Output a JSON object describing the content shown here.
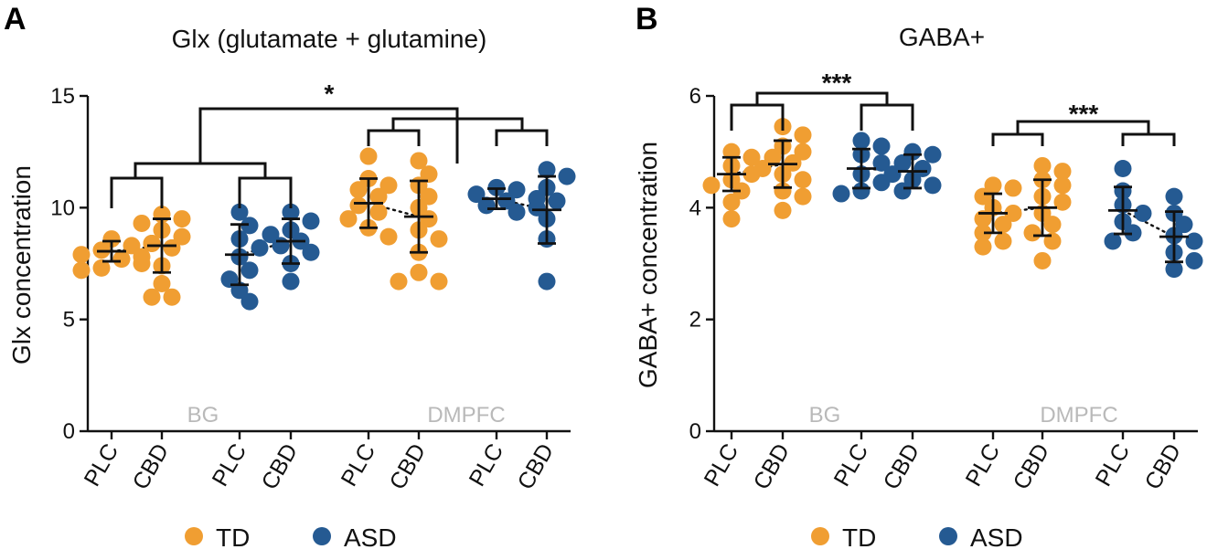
{
  "colors": {
    "TD": "#F09E32",
    "ASD": "#255A92"
  },
  "legend": {
    "items": [
      {
        "label": "TD",
        "group": "TD"
      },
      {
        "label": "ASD",
        "group": "ASD"
      }
    ]
  },
  "chart_data": [
    {
      "type": "scatter",
      "letter": "A",
      "title": "Glx (glutamate + glutamine)",
      "ylabel": "Glx concentration",
      "ylim": [
        0,
        15
      ],
      "yticks": [
        "0",
        "5",
        "10",
        "15"
      ],
      "regions": [
        "BG",
        "DMPFC"
      ],
      "significance": "*",
      "sig_brackets": [],
      "groups": [
        {
          "label": "PLC",
          "group": "TD",
          "region": "BG",
          "mean": 8.05,
          "sd": 0.45,
          "points": [
            8.6,
            8.3,
            8.1,
            7.9,
            7.7,
            7.5,
            7.3,
            7.2,
            8.4
          ]
        },
        {
          "label": "CBD",
          "group": "TD",
          "region": "BG",
          "mean": 8.3,
          "sd": 1.2,
          "points": [
            9.7,
            9.5,
            9.3,
            9.0,
            8.7,
            8.4,
            8.2,
            7.8,
            7.4,
            6.6,
            6.0,
            6.0
          ]
        },
        {
          "label": "PLC",
          "group": "ASD",
          "region": "BG",
          "mean": 7.9,
          "sd": 1.35,
          "points": [
            9.8,
            9.2,
            8.6,
            8.2,
            7.8,
            7.2,
            6.8,
            6.3,
            5.8
          ]
        },
        {
          "label": "CBD",
          "group": "ASD",
          "region": "BG",
          "mean": 8.5,
          "sd": 1.0,
          "points": [
            9.8,
            9.4,
            9.0,
            8.8,
            8.5,
            8.3,
            8.0,
            7.5,
            6.7
          ]
        },
        {
          "label": "PLC",
          "group": "TD",
          "region": "DMPFC",
          "mean": 10.2,
          "sd": 1.1,
          "points": [
            12.3,
            11.3,
            11.0,
            10.8,
            10.5,
            10.1,
            9.8,
            9.5,
            9.1,
            8.7
          ]
        },
        {
          "label": "CBD",
          "group": "TD",
          "region": "DMPFC",
          "mean": 9.6,
          "sd": 1.6,
          "points": [
            12.1,
            11.5,
            11.0,
            10.5,
            10.0,
            9.5,
            9.0,
            8.6,
            8.0,
            7.1,
            6.7,
            6.7
          ]
        },
        {
          "label": "PLC",
          "group": "ASD",
          "region": "DMPFC",
          "mean": 10.4,
          "sd": 0.45,
          "points": [
            10.9,
            10.8,
            10.6,
            10.4,
            10.3,
            10.1,
            9.8
          ]
        },
        {
          "label": "CBD",
          "group": "ASD",
          "region": "DMPFC",
          "mean": 9.9,
          "sd": 1.5,
          "points": [
            11.7,
            11.4,
            10.9,
            10.3,
            10.0,
            9.5,
            8.6,
            6.7
          ]
        }
      ]
    },
    {
      "type": "scatter",
      "letter": "B",
      "title": "GABA+",
      "ylabel": "GABA+ concentration",
      "ylim": [
        0,
        6
      ],
      "yticks": [
        "0",
        "2",
        "4",
        "6"
      ],
      "regions": [
        "BG",
        "DMPFC"
      ],
      "significance": "",
      "sig_brackets": [
        "***",
        "***"
      ],
      "groups": [
        {
          "label": "PLC",
          "group": "TD",
          "region": "BG",
          "mean": 4.6,
          "sd": 0.3,
          "points": [
            5.0,
            4.9,
            4.75,
            4.6,
            4.5,
            4.4,
            4.3,
            4.1,
            3.8
          ]
        },
        {
          "label": "CBD",
          "group": "TD",
          "region": "BG",
          "mean": 4.78,
          "sd": 0.42,
          "points": [
            5.45,
            5.3,
            5.1,
            5.0,
            4.9,
            4.8,
            4.7,
            4.6,
            4.5,
            4.3,
            4.2,
            3.95
          ]
        },
        {
          "label": "PLC",
          "group": "ASD",
          "region": "BG",
          "mean": 4.7,
          "sd": 0.35,
          "points": [
            5.2,
            5.1,
            4.95,
            4.8,
            4.6,
            4.45,
            4.3,
            4.25
          ]
        },
        {
          "label": "CBD",
          "group": "ASD",
          "region": "BG",
          "mean": 4.65,
          "sd": 0.3,
          "points": [
            5.0,
            4.95,
            4.8,
            4.7,
            4.6,
            4.5,
            4.4,
            4.3
          ]
        },
        {
          "label": "PLC",
          "group": "TD",
          "region": "DMPFC",
          "mean": 3.9,
          "sd": 0.35,
          "points": [
            4.4,
            4.35,
            4.2,
            4.0,
            3.9,
            3.8,
            3.7,
            3.55,
            3.4,
            3.3
          ]
        },
        {
          "label": "CBD",
          "group": "TD",
          "region": "DMPFC",
          "mean": 4.0,
          "sd": 0.5,
          "points": [
            4.75,
            4.65,
            4.5,
            4.4,
            4.2,
            4.1,
            3.9,
            3.7,
            3.55,
            3.4,
            3.05
          ]
        },
        {
          "label": "PLC",
          "group": "ASD",
          "region": "DMPFC",
          "mean": 3.95,
          "sd": 0.42,
          "points": [
            4.7,
            4.3,
            4.05,
            3.9,
            3.75,
            3.55,
            3.4
          ]
        },
        {
          "label": "CBD",
          "group": "ASD",
          "region": "DMPFC",
          "mean": 3.48,
          "sd": 0.45,
          "points": [
            4.2,
            3.9,
            3.7,
            3.5,
            3.4,
            3.2,
            3.05,
            2.9
          ]
        }
      ]
    }
  ]
}
